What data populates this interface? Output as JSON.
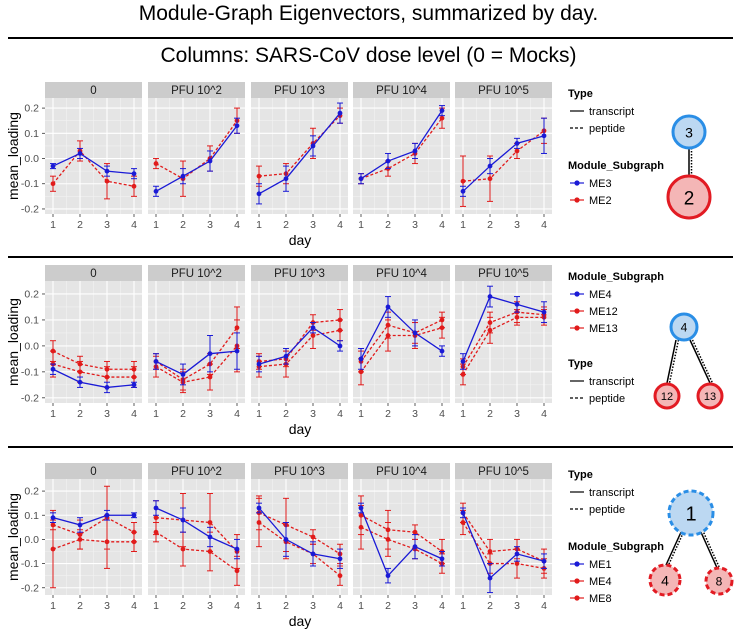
{
  "title": "Module-Graph Eigenvectors, summarized by day.",
  "subtitle": "Columns: SARS-CoV dose level (0 = Mocks)",
  "colors": {
    "blue": "#1a1ad6",
    "red": "#e11b1b",
    "panel_bg": "#e5e5e5",
    "strip_bg": "#cccccc",
    "node_blue_fill": "#bcd8f2",
    "node_blue_stroke": "#2a8ee6",
    "node_red_fill": "#f4b6b6",
    "node_red_stroke": "#e21b23"
  },
  "chart_data": [
    {
      "type": "line",
      "facets": [
        "0",
        "PFU 10^2",
        "PFU 10^3",
        "PFU 10^4",
        "PFU 10^5"
      ],
      "x": [
        1,
        2,
        3,
        4
      ],
      "xlabel": "day",
      "ylabel": "mean_loading",
      "ylim": [
        -0.22,
        0.24
      ],
      "yticks": [
        -0.2,
        -0.1,
        0.0,
        0.1,
        0.2
      ],
      "ytick_labels": [
        "-0.2",
        "-0.1",
        "0.0",
        "0.1",
        "0.2"
      ],
      "legend_type": {
        "title": "Type",
        "items": [
          "transcript",
          "peptide"
        ]
      },
      "legend_subgraph": {
        "title": "Module_Subgraph",
        "items": [
          "ME3",
          "ME2"
        ]
      },
      "legend_order": "type-first",
      "series": [
        {
          "name": "ME3",
          "type": "transcript",
          "color": "blue",
          "values": [
            [
              -0.03,
              0.02,
              -0.05,
              -0.06
            ],
            [
              -0.13,
              -0.07,
              -0.01,
              0.13
            ],
            [
              -0.14,
              -0.08,
              0.05,
              0.18
            ],
            [
              -0.08,
              -0.01,
              0.03,
              0.19
            ],
            [
              -0.13,
              -0.03,
              0.06,
              0.09
            ]
          ],
          "err": [
            [
              0.01,
              0.02,
              0.02,
              0.02
            ],
            [
              0.02,
              0.03,
              0.04,
              0.03
            ],
            [
              0.04,
              0.05,
              0.04,
              0.04
            ],
            [
              0.02,
              0.03,
              0.03,
              0.02
            ],
            [
              0.02,
              0.03,
              0.02,
              0.07
            ]
          ]
        },
        {
          "name": "ME2",
          "type": "peptide",
          "color": "red",
          "values": [
            [
              -0.1,
              0.03,
              -0.09,
              -0.11
            ],
            [
              -0.02,
              -0.08,
              0.0,
              0.15
            ],
            [
              -0.07,
              -0.06,
              0.06,
              0.17
            ],
            [
              -0.08,
              -0.04,
              0.02,
              0.16
            ],
            [
              -0.09,
              -0.08,
              0.03,
              0.11
            ]
          ],
          "err": [
            [
              0.03,
              0.04,
              0.07,
              0.04
            ],
            [
              0.02,
              0.07,
              0.05,
              0.05
            ],
            [
              0.04,
              0.04,
              0.06,
              0.03
            ],
            [
              0.02,
              0.03,
              0.04,
              0.04
            ],
            [
              0.1,
              0.09,
              0.03,
              0.05
            ]
          ]
        }
      ],
      "graph": {
        "nodes": [
          {
            "label": "3",
            "color": "blue"
          },
          {
            "label": "2",
            "color": "red"
          }
        ],
        "edge": "dotted"
      }
    },
    {
      "type": "line",
      "facets": [
        "0",
        "PFU 10^2",
        "PFU 10^3",
        "PFU 10^4",
        "PFU 10^5"
      ],
      "x": [
        1,
        2,
        3,
        4
      ],
      "xlabel": "day",
      "ylabel": "mean_loading",
      "ylim": [
        -0.22,
        0.25
      ],
      "yticks": [
        -0.2,
        -0.1,
        0.0,
        0.1,
        0.2
      ],
      "ytick_labels": [
        "-0.2",
        "-0.1",
        "0.0",
        "0.1",
        "0.2"
      ],
      "legend_type": {
        "title": "Type",
        "items": [
          "transcript",
          "peptide"
        ]
      },
      "legend_subgraph": {
        "title": "Module_Subgraph",
        "items": [
          "ME4",
          "ME12",
          "ME13"
        ]
      },
      "legend_order": "subgraph-first",
      "series": [
        {
          "name": "ME4",
          "type": "transcript",
          "color": "blue",
          "values": [
            [
              -0.09,
              -0.14,
              -0.16,
              -0.15
            ],
            [
              -0.06,
              -0.11,
              -0.03,
              -0.02
            ],
            [
              -0.07,
              -0.04,
              0.07,
              0.0
            ],
            [
              -0.05,
              0.15,
              0.05,
              -0.02
            ],
            [
              -0.06,
              0.19,
              0.16,
              0.13
            ]
          ],
          "err": [
            [
              0.02,
              0.02,
              0.02,
              0.01
            ],
            [
              0.03,
              0.04,
              0.07,
              0.07
            ],
            [
              0.03,
              0.03,
              0.02,
              0.02
            ],
            [
              0.04,
              0.04,
              0.05,
              0.02
            ],
            [
              0.03,
              0.04,
              0.03,
              0.04
            ]
          ]
        },
        {
          "name": "ME12",
          "type": "peptide",
          "color": "red",
          "values": [
            [
              -0.02,
              -0.07,
              -0.09,
              -0.09
            ],
            [
              -0.06,
              -0.13,
              -0.07,
              0.07
            ],
            [
              -0.06,
              -0.05,
              0.09,
              0.1
            ],
            [
              -0.06,
              0.08,
              0.05,
              0.1
            ],
            [
              -0.08,
              0.09,
              0.13,
              0.12
            ]
          ],
          "err": [
            [
              0.04,
              0.03,
              0.03,
              0.03
            ],
            [
              0.03,
              0.04,
              0.04,
              0.08
            ],
            [
              0.03,
              0.03,
              0.03,
              0.04
            ],
            [
              0.04,
              0.05,
              0.04,
              0.03
            ],
            [
              0.03,
              0.04,
              0.04,
              0.03
            ]
          ]
        },
        {
          "name": "ME13",
          "type": "peptide",
          "color": "red",
          "values": [
            [
              -0.07,
              -0.1,
              -0.12,
              -0.12
            ],
            [
              -0.08,
              -0.14,
              -0.12,
              0.0
            ],
            [
              -0.08,
              -0.07,
              0.04,
              0.06
            ],
            [
              -0.1,
              0.04,
              0.04,
              0.07
            ],
            [
              -0.11,
              0.06,
              0.11,
              0.11
            ]
          ],
          "err": [
            [
              0.05,
              0.04,
              0.04,
              0.04
            ],
            [
              0.04,
              0.04,
              0.05,
              0.1
            ],
            [
              0.04,
              0.05,
              0.05,
              0.04
            ],
            [
              0.05,
              0.06,
              0.05,
              0.04
            ],
            [
              0.04,
              0.05,
              0.03,
              0.03
            ]
          ]
        }
      ],
      "graph": {
        "nodes": [
          {
            "label": "4",
            "color": "blue"
          },
          {
            "label": "12",
            "color": "red"
          },
          {
            "label": "13",
            "color": "red"
          }
        ],
        "edge": "dotted"
      }
    },
    {
      "type": "line",
      "facets": [
        "0",
        "PFU 10^2",
        "PFU 10^3",
        "PFU 10^4",
        "PFU 10^5"
      ],
      "x": [
        1,
        2,
        3,
        4
      ],
      "xlabel": "day",
      "ylabel": "mean_loading",
      "ylim": [
        -0.23,
        0.25
      ],
      "yticks": [
        -0.2,
        -0.1,
        0.0,
        0.1,
        0.2
      ],
      "ytick_labels": [
        "-0.2",
        "-0.1",
        "0.0",
        "0.1",
        "0.2"
      ],
      "legend_type": {
        "title": "Type",
        "items": [
          "transcript",
          "peptide"
        ]
      },
      "legend_subgraph": {
        "title": "Module_Subgraph",
        "items": [
          "ME1",
          "ME4",
          "ME8"
        ]
      },
      "legend_order": "type-first",
      "series": [
        {
          "name": "ME1",
          "type": "transcript",
          "color": "blue",
          "values": [
            [
              0.09,
              0.06,
              0.1,
              0.1
            ],
            [
              0.13,
              0.08,
              0.01,
              -0.04
            ],
            [
              0.13,
              0.0,
              -0.06,
              -0.08
            ],
            [
              0.13,
              -0.15,
              -0.03,
              -0.08
            ],
            [
              0.11,
              -0.16,
              -0.06,
              -0.09
            ]
          ],
          "err": [
            [
              0.02,
              0.03,
              0.02,
              0.01
            ],
            [
              0.03,
              0.05,
              0.04,
              0.04
            ],
            [
              0.02,
              0.07,
              0.05,
              0.04
            ],
            [
              0.02,
              0.03,
              0.05,
              0.03
            ],
            [
              0.02,
              0.06,
              0.03,
              0.03
            ]
          ]
        },
        {
          "name": "ME4",
          "type": "peptide",
          "color": "red",
          "values": [
            [
              0.06,
              0.02,
              0.09,
              0.03
            ],
            [
              0.09,
              0.08,
              0.07,
              -0.05
            ],
            [
              0.11,
              0.06,
              0.01,
              -0.06
            ],
            [
              0.1,
              0.04,
              0.03,
              -0.05
            ],
            [
              0.11,
              -0.05,
              -0.04,
              -0.09
            ]
          ],
          "err": [
            [
              0.02,
              0.06,
              0.13,
              0.04
            ],
            [
              0.07,
              0.11,
              0.12,
              0.07
            ],
            [
              0.07,
              0.11,
              0.03,
              0.04
            ],
            [
              0.08,
              0.08,
              0.03,
              0.05
            ],
            [
              0.04,
              0.05,
              0.04,
              0.05
            ]
          ]
        },
        {
          "name": "ME8",
          "type": "peptide",
          "color": "red",
          "values": [
            [
              -0.04,
              0.0,
              -0.01,
              -0.01
            ],
            [
              0.03,
              -0.04,
              -0.05,
              -0.13
            ],
            [
              0.07,
              -0.01,
              -0.06,
              -0.15
            ],
            [
              0.05,
              0.0,
              -0.04,
              -0.1
            ],
            [
              0.07,
              -0.1,
              -0.1,
              -0.12
            ]
          ],
          "err": [
            [
              0.16,
              0.04,
              0.11,
              0.04
            ],
            [
              0.04,
              0.07,
              0.08,
              0.06
            ],
            [
              0.1,
              0.07,
              0.04,
              0.04
            ],
            [
              0.09,
              0.07,
              0.04,
              0.04
            ],
            [
              0.05,
              0.04,
              0.06,
              0.04
            ]
          ]
        }
      ],
      "graph": {
        "nodes": [
          {
            "label": "1",
            "color": "blue"
          },
          {
            "label": "4",
            "color": "red"
          },
          {
            "label": "8",
            "color": "red"
          }
        ],
        "edge": "solid-and-dotted",
        "node_border": "dashed"
      }
    }
  ]
}
